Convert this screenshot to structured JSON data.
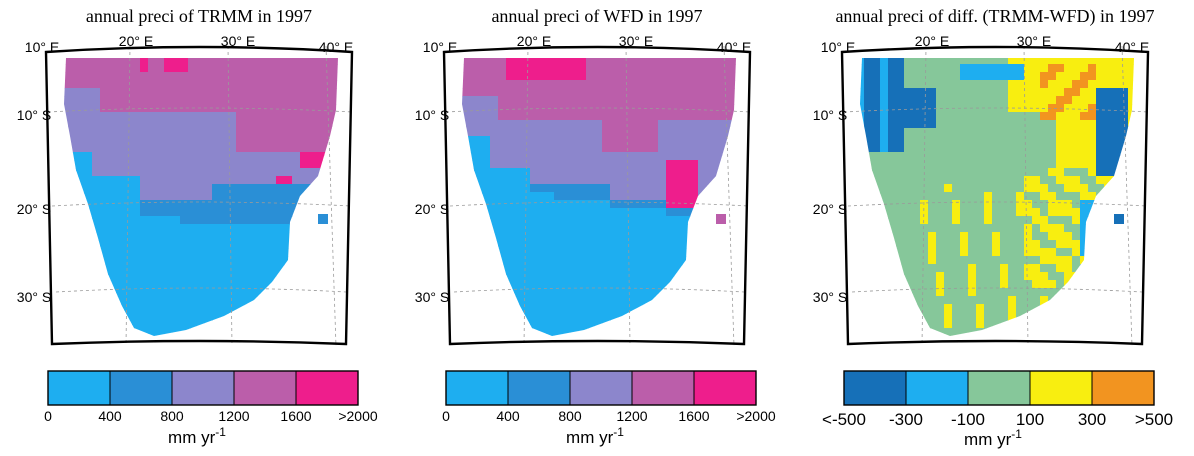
{
  "panels": [
    {
      "id": "trmm",
      "title": "annual preci of TRMM in 1997",
      "lon_labels": [
        "10° E",
        "20° E",
        "30° E",
        "40° E"
      ],
      "lat_labels": [
        "10° S",
        "20° S",
        "30° S"
      ],
      "colorbar": {
        "colors": [
          "#1eaef0",
          "#2a8fd6",
          "#8c86cc",
          "#bb5eaa",
          "#ee1e8c"
        ],
        "tick_labels": [
          "0",
          "400",
          "800",
          "1200",
          "1600",
          ">2000"
        ],
        "unit": "mm yr",
        "unit_exp": "-1"
      }
    },
    {
      "id": "wfd",
      "title": "annual preci of WFD in 1997",
      "lon_labels": [
        "10° E",
        "20° E",
        "30° E",
        "40° E"
      ],
      "lat_labels": [
        "10° S",
        "20° S",
        "30° S"
      ],
      "colorbar": {
        "colors": [
          "#1eaef0",
          "#2a8fd6",
          "#8c86cc",
          "#bb5eaa",
          "#ee1e8c"
        ],
        "tick_labels": [
          "0",
          "400",
          "800",
          "1200",
          "1600",
          ">2000"
        ],
        "unit": "mm yr",
        "unit_exp": "-1"
      }
    },
    {
      "id": "diff",
      "title": "annual preci of diff. (TRMM-WFD) in 1997",
      "lon_labels": [
        "10° E",
        "20° E",
        "30° E",
        "40° E"
      ],
      "lat_labels": [
        "10° S",
        "20° S",
        "30° S"
      ],
      "colorbar": {
        "colors": [
          "#1670b8",
          "#1eaef0",
          "#86c79a",
          "#f8ee10",
          "#f29420"
        ],
        "tick_labels": [
          "<-500",
          "-300",
          "-100",
          "100",
          "300",
          ">500"
        ],
        "unit": "mm yr",
        "unit_exp": "-1"
      }
    }
  ]
}
